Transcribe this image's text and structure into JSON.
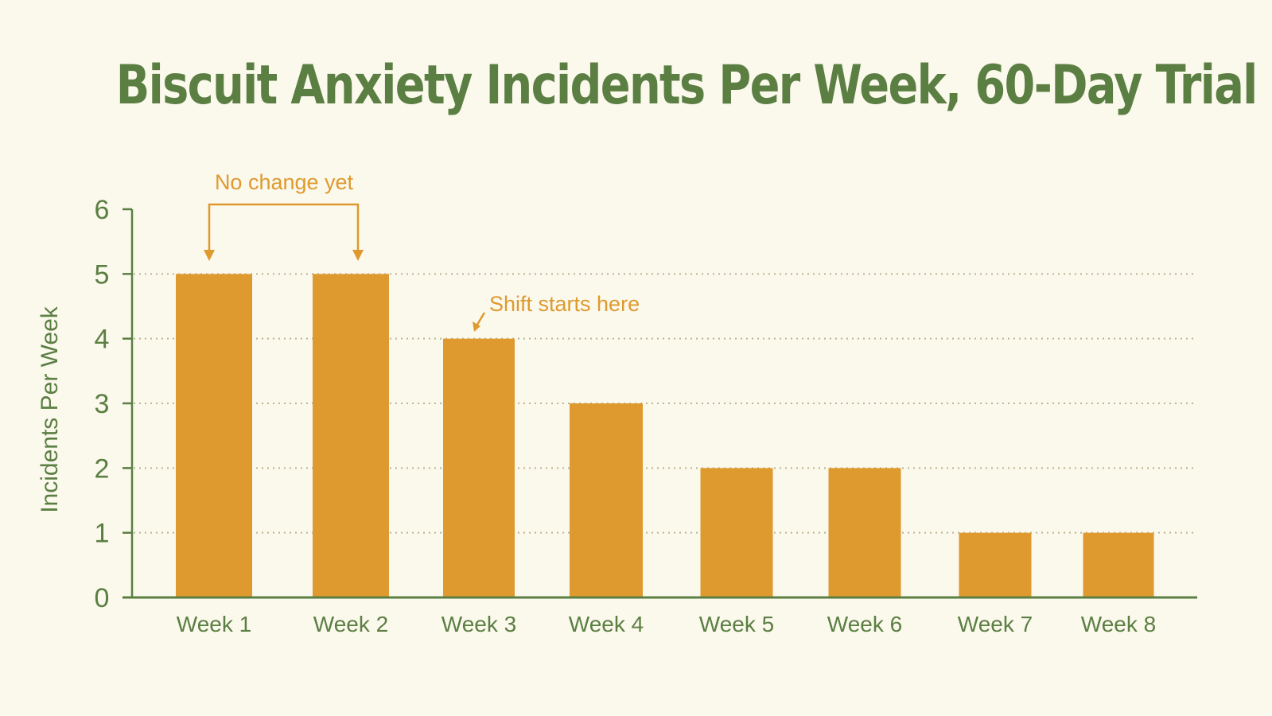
{
  "chart_data": {
    "type": "bar",
    "title": "Biscuit Anxiety Incidents Per Week, 60-Day Trial",
    "xlabel": "",
    "ylabel": "Incidents Per Week",
    "categories": [
      "Week 1",
      "Week 2",
      "Week 3",
      "Week 4",
      "Week 5",
      "Week 6",
      "Week 7",
      "Week 8"
    ],
    "values": [
      5,
      5,
      4,
      3,
      2,
      2,
      1,
      1
    ],
    "ylim": [
      0,
      6
    ],
    "yticks": [
      "0",
      "1",
      "2",
      "3",
      "4",
      "5",
      "6"
    ],
    "grid": "horizontal dotted",
    "legend": "none",
    "annotations": [
      {
        "text": "No change yet",
        "targets": [
          "Week 1",
          "Week 2"
        ]
      },
      {
        "text": "Shift starts here",
        "targets": [
          "Week 3"
        ]
      }
    ],
    "colors": {
      "bar": "#de9a2e",
      "text": "#5b7f43",
      "axis": "#5b7f43",
      "grid": "#b9b595",
      "annotation": "#de9a2e",
      "background": "#fbf8ec"
    }
  }
}
